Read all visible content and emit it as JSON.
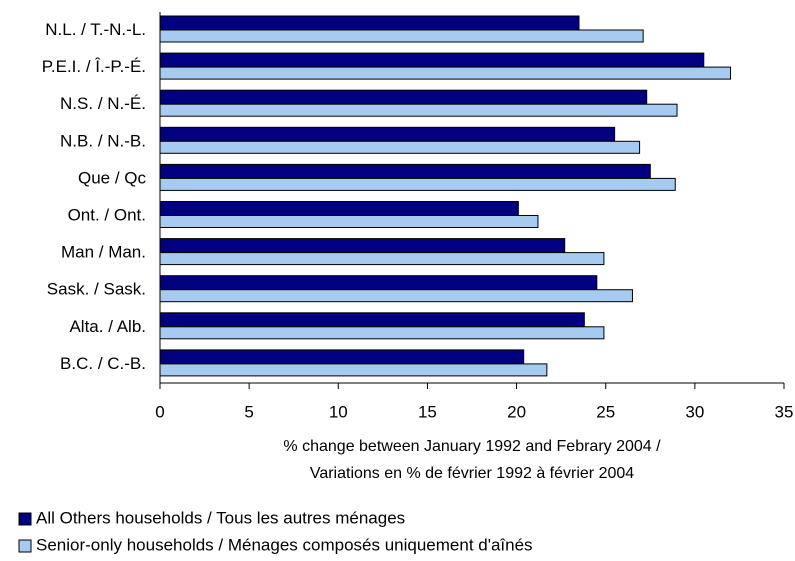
{
  "chart_data": {
    "type": "hbar",
    "categories": [
      "N.L. / T.-N.-L.",
      "P.E.I. / Î.-P.-É.",
      "N.S. / N.-É.",
      "N.B. / N.-B.",
      "Que / Qc",
      "Ont. / Ont.",
      "Man / Man.",
      "Sask. / Sask.",
      "Alta. / Alb.",
      "B.C. / C.-B."
    ],
    "series": [
      {
        "name": "All Others households / Tous les autres ménages",
        "color": "#000080",
        "values": [
          23.5,
          30.5,
          27.3,
          25.5,
          27.5,
          20.1,
          22.7,
          24.5,
          23.8,
          20.4
        ]
      },
      {
        "name": "Senior-only households / Ménages composés uniquement d'aînés",
        "color": "#a6caf0",
        "values": [
          27.1,
          32.0,
          29.0,
          26.9,
          28.9,
          21.2,
          24.9,
          26.5,
          24.9,
          21.7
        ]
      }
    ],
    "xlabel": [
      "% change between January 1992 and Febrary 2004 /",
      "Variations en % de février 1992 à février 2004"
    ],
    "xlim": [
      0,
      35
    ],
    "xticks": [
      0,
      5,
      10,
      15,
      20,
      25,
      30,
      35
    ],
    "legend": "bottom-left"
  }
}
